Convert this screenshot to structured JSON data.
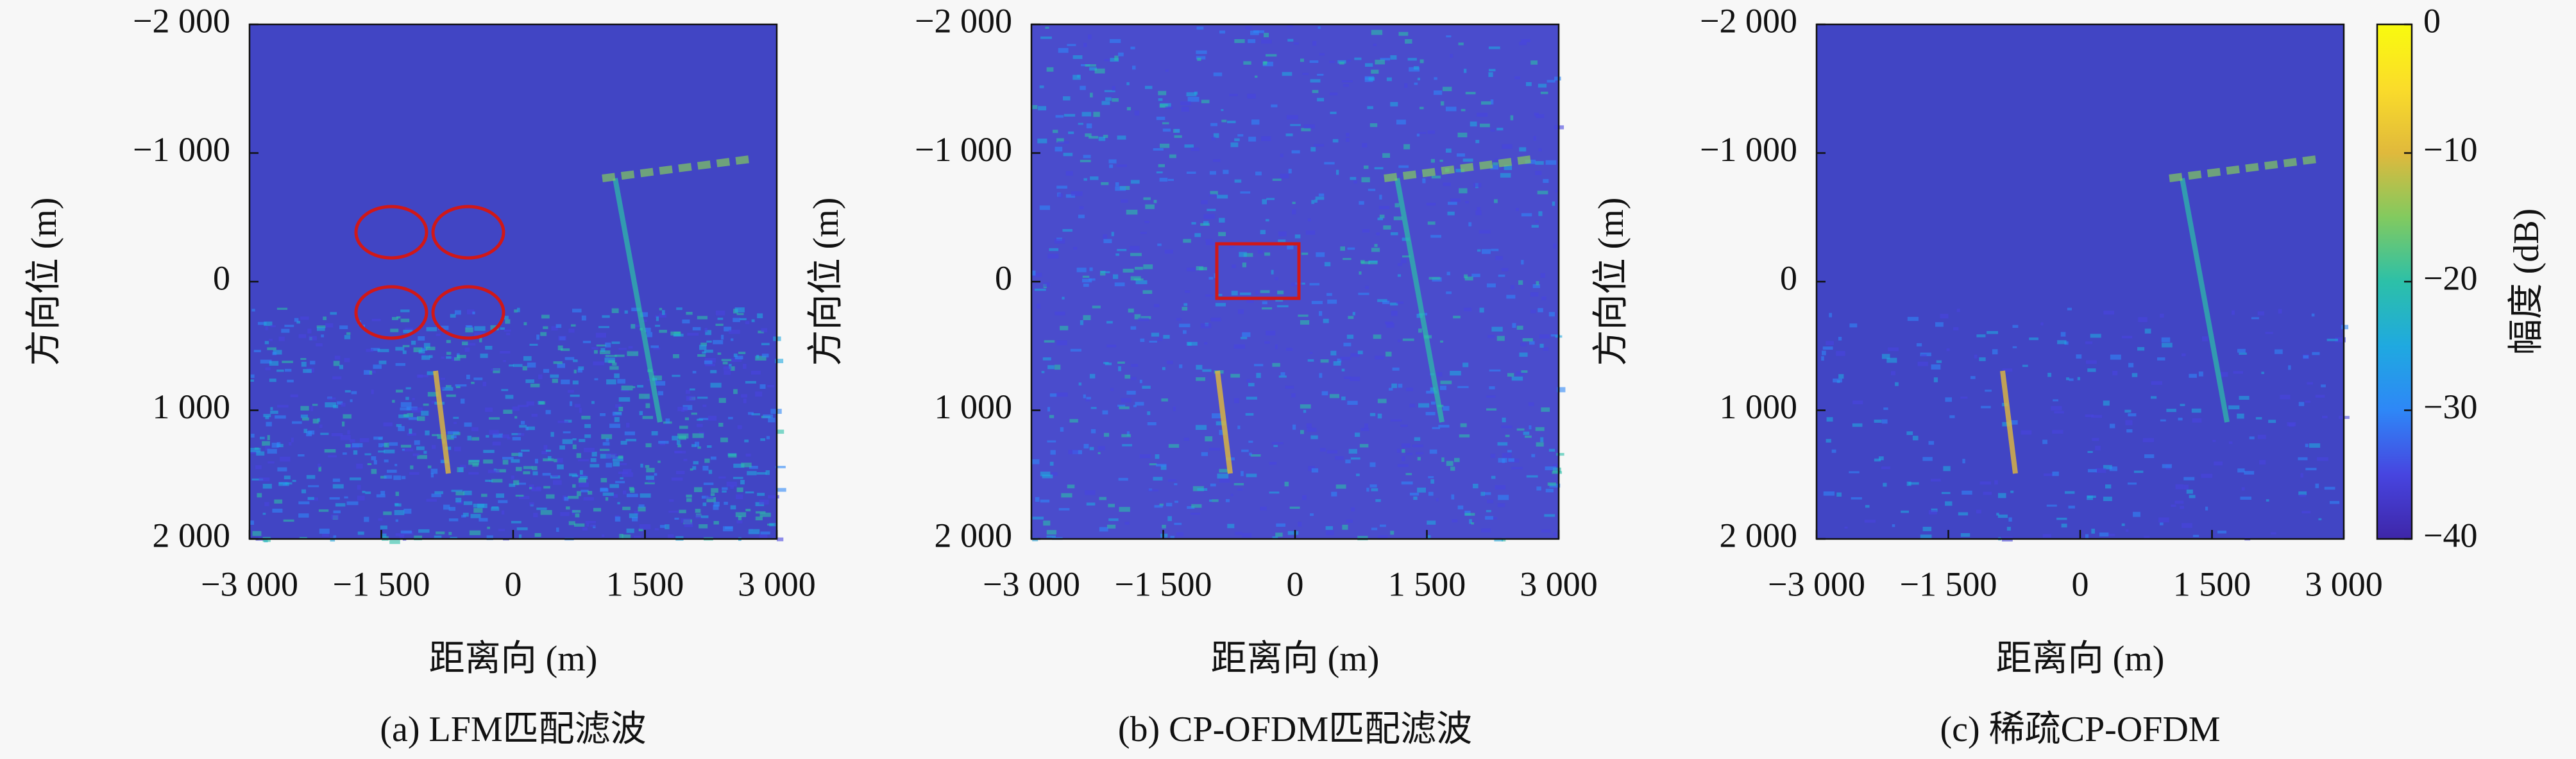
{
  "chart_data": [
    {
      "type": "heatmap",
      "title": "(a) LFM匹配滤波",
      "xlabel": "距离向 (m)",
      "ylabel": "方向位 (m)",
      "xlim": [
        -3000,
        3000
      ],
      "ylim": [
        -2000,
        2000
      ],
      "y_reversed": true,
      "xticks": [
        {
          "value": -3000,
          "label": "−3 000"
        },
        {
          "value": -1500,
          "label": "−1 500"
        },
        0,
        {
          "value": 1500,
          "label": "1 500"
        },
        {
          "value": 3000,
          "label": "3 000"
        }
      ],
      "yticks": [
        {
          "value": -2000,
          "label": "−2 000"
        },
        {
          "value": -1000,
          "label": "−1 000"
        },
        0,
        {
          "value": 1000,
          "label": "1 000"
        },
        {
          "value": 2000,
          "label": "2 000"
        }
      ]
    },
    {
      "type": "heatmap",
      "title": "(b) CP-OFDM匹配滤波",
      "xlabel": "距离向 (m)",
      "ylabel": "方向位 (m)",
      "xlim": [
        -3000,
        3000
      ],
      "ylim": [
        -2000,
        2000
      ],
      "y_reversed": true,
      "xticks": [
        {
          "value": -3000,
          "label": "−3 000"
        },
        {
          "value": -1500,
          "label": "−1 500"
        },
        0,
        {
          "value": 1500,
          "label": "1 500"
        },
        {
          "value": 3000,
          "label": "3 000"
        }
      ],
      "yticks": [
        {
          "value": -2000,
          "label": "−2 000"
        },
        {
          "value": -1000,
          "label": "−1 000"
        },
        0,
        {
          "value": 1000,
          "label": "1 000"
        },
        {
          "value": 2000,
          "label": "2 000"
        }
      ]
    },
    {
      "type": "heatmap",
      "title": "(c) 稀疏CP-OFDM",
      "xlabel": "距离向 (m)",
      "ylabel": "方向位 (m)",
      "xlim": [
        -3000,
        3000
      ],
      "ylim": [
        -2000,
        2000
      ],
      "y_reversed": true,
      "xticks": [
        {
          "value": -3000,
          "label": "−3 000"
        },
        {
          "value": -1500,
          "label": "−1 500"
        },
        0,
        {
          "value": 1500,
          "label": "1 500"
        },
        {
          "value": 3000,
          "label": "3 000"
        }
      ],
      "yticks": [
        {
          "value": -2000,
          "label": "−2 000"
        },
        {
          "value": -1000,
          "label": "−1 000"
        },
        0,
        {
          "value": 1000,
          "label": "1 000"
        },
        {
          "value": 2000,
          "label": "2 000"
        }
      ],
      "colorbar": {
        "label": "幅度 (dB)",
        "lim": [
          -40,
          0
        ],
        "ticks": [
          0,
          {
            "value": -10,
            "label": "−10"
          },
          {
            "value": -20,
            "label": "−20"
          },
          {
            "value": -30,
            "label": "−30"
          },
          {
            "value": -40,
            "label": "−40"
          }
        ],
        "colormap": [
          "#3e26a8",
          "#4745e0",
          "#2e87f7",
          "#1fa9e0",
          "#2cc0a8",
          "#82ca5f",
          "#e0b93c",
          "#fadc2a",
          "#f9fb0e"
        ]
      }
    }
  ]
}
